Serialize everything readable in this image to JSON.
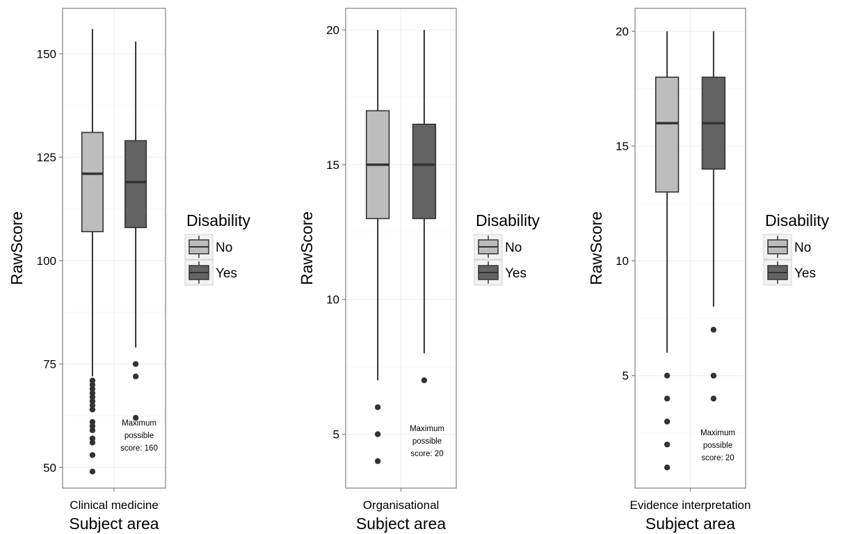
{
  "chart_data": [
    {
      "type": "box",
      "xlabel": "Subject area",
      "ylabel": "RawScore",
      "categories": [
        "Clinical medicine"
      ],
      "ylim": [
        45,
        161
      ],
      "yticks": [
        50,
        75,
        100,
        125,
        150
      ],
      "grid": true,
      "legend": {
        "title": "Disability",
        "position": "right",
        "entries": [
          "No",
          "Yes"
        ]
      },
      "annotation": [
        "Maximum",
        "possible",
        "score: 160"
      ],
      "series": [
        {
          "name": "No",
          "color": "#bdbdbd",
          "min": 72,
          "q1": 107,
          "median": 121,
          "q3": 131,
          "max": 156,
          "outliers": [
            49,
            53,
            56,
            57,
            59,
            60,
            61,
            64,
            65,
            66,
            67,
            68,
            69,
            70,
            71
          ]
        },
        {
          "name": "Yes",
          "color": "#636363",
          "min": 79,
          "q1": 108,
          "median": 119,
          "q3": 129,
          "max": 153,
          "outliers": [
            62,
            72,
            75
          ]
        }
      ]
    },
    {
      "type": "box",
      "xlabel": "Subject area",
      "ylabel": "RawScore",
      "categories": [
        "Organisational"
      ],
      "ylim": [
        3,
        20.8
      ],
      "yticks": [
        5,
        10,
        15,
        20
      ],
      "grid": true,
      "legend": {
        "title": "Disability",
        "position": "right",
        "entries": [
          "No",
          "Yes"
        ]
      },
      "annotation": [
        "Maximum",
        "possible",
        "score: 20"
      ],
      "series": [
        {
          "name": "No",
          "color": "#bdbdbd",
          "min": 7,
          "q1": 13,
          "median": 15,
          "q3": 17,
          "max": 20,
          "outliers": [
            4,
            5,
            6
          ]
        },
        {
          "name": "Yes",
          "color": "#636363",
          "min": 8,
          "q1": 13,
          "median": 15,
          "q3": 16.5,
          "max": 20,
          "outliers": [
            7
          ]
        }
      ]
    },
    {
      "type": "box",
      "xlabel": "Subject area",
      "ylabel": "RawScore",
      "categories": [
        "Evidence interpretation"
      ],
      "ylim": [
        0.1,
        21
      ],
      "yticks": [
        5,
        10,
        15,
        20
      ],
      "grid": true,
      "legend": {
        "title": "Disability",
        "position": "right",
        "entries": [
          "No",
          "Yes"
        ]
      },
      "annotation": [
        "Maximum",
        "possible",
        "score: 20"
      ],
      "series": [
        {
          "name": "No",
          "color": "#bdbdbd",
          "min": 6,
          "q1": 13,
          "median": 16,
          "q3": 18,
          "max": 20,
          "outliers": [
            1,
            2,
            3,
            4,
            5
          ]
        },
        {
          "name": "Yes",
          "color": "#636363",
          "min": 8,
          "q1": 14,
          "median": 16,
          "q3": 18,
          "max": 20,
          "outliers": [
            4,
            5,
            7
          ]
        }
      ]
    }
  ]
}
